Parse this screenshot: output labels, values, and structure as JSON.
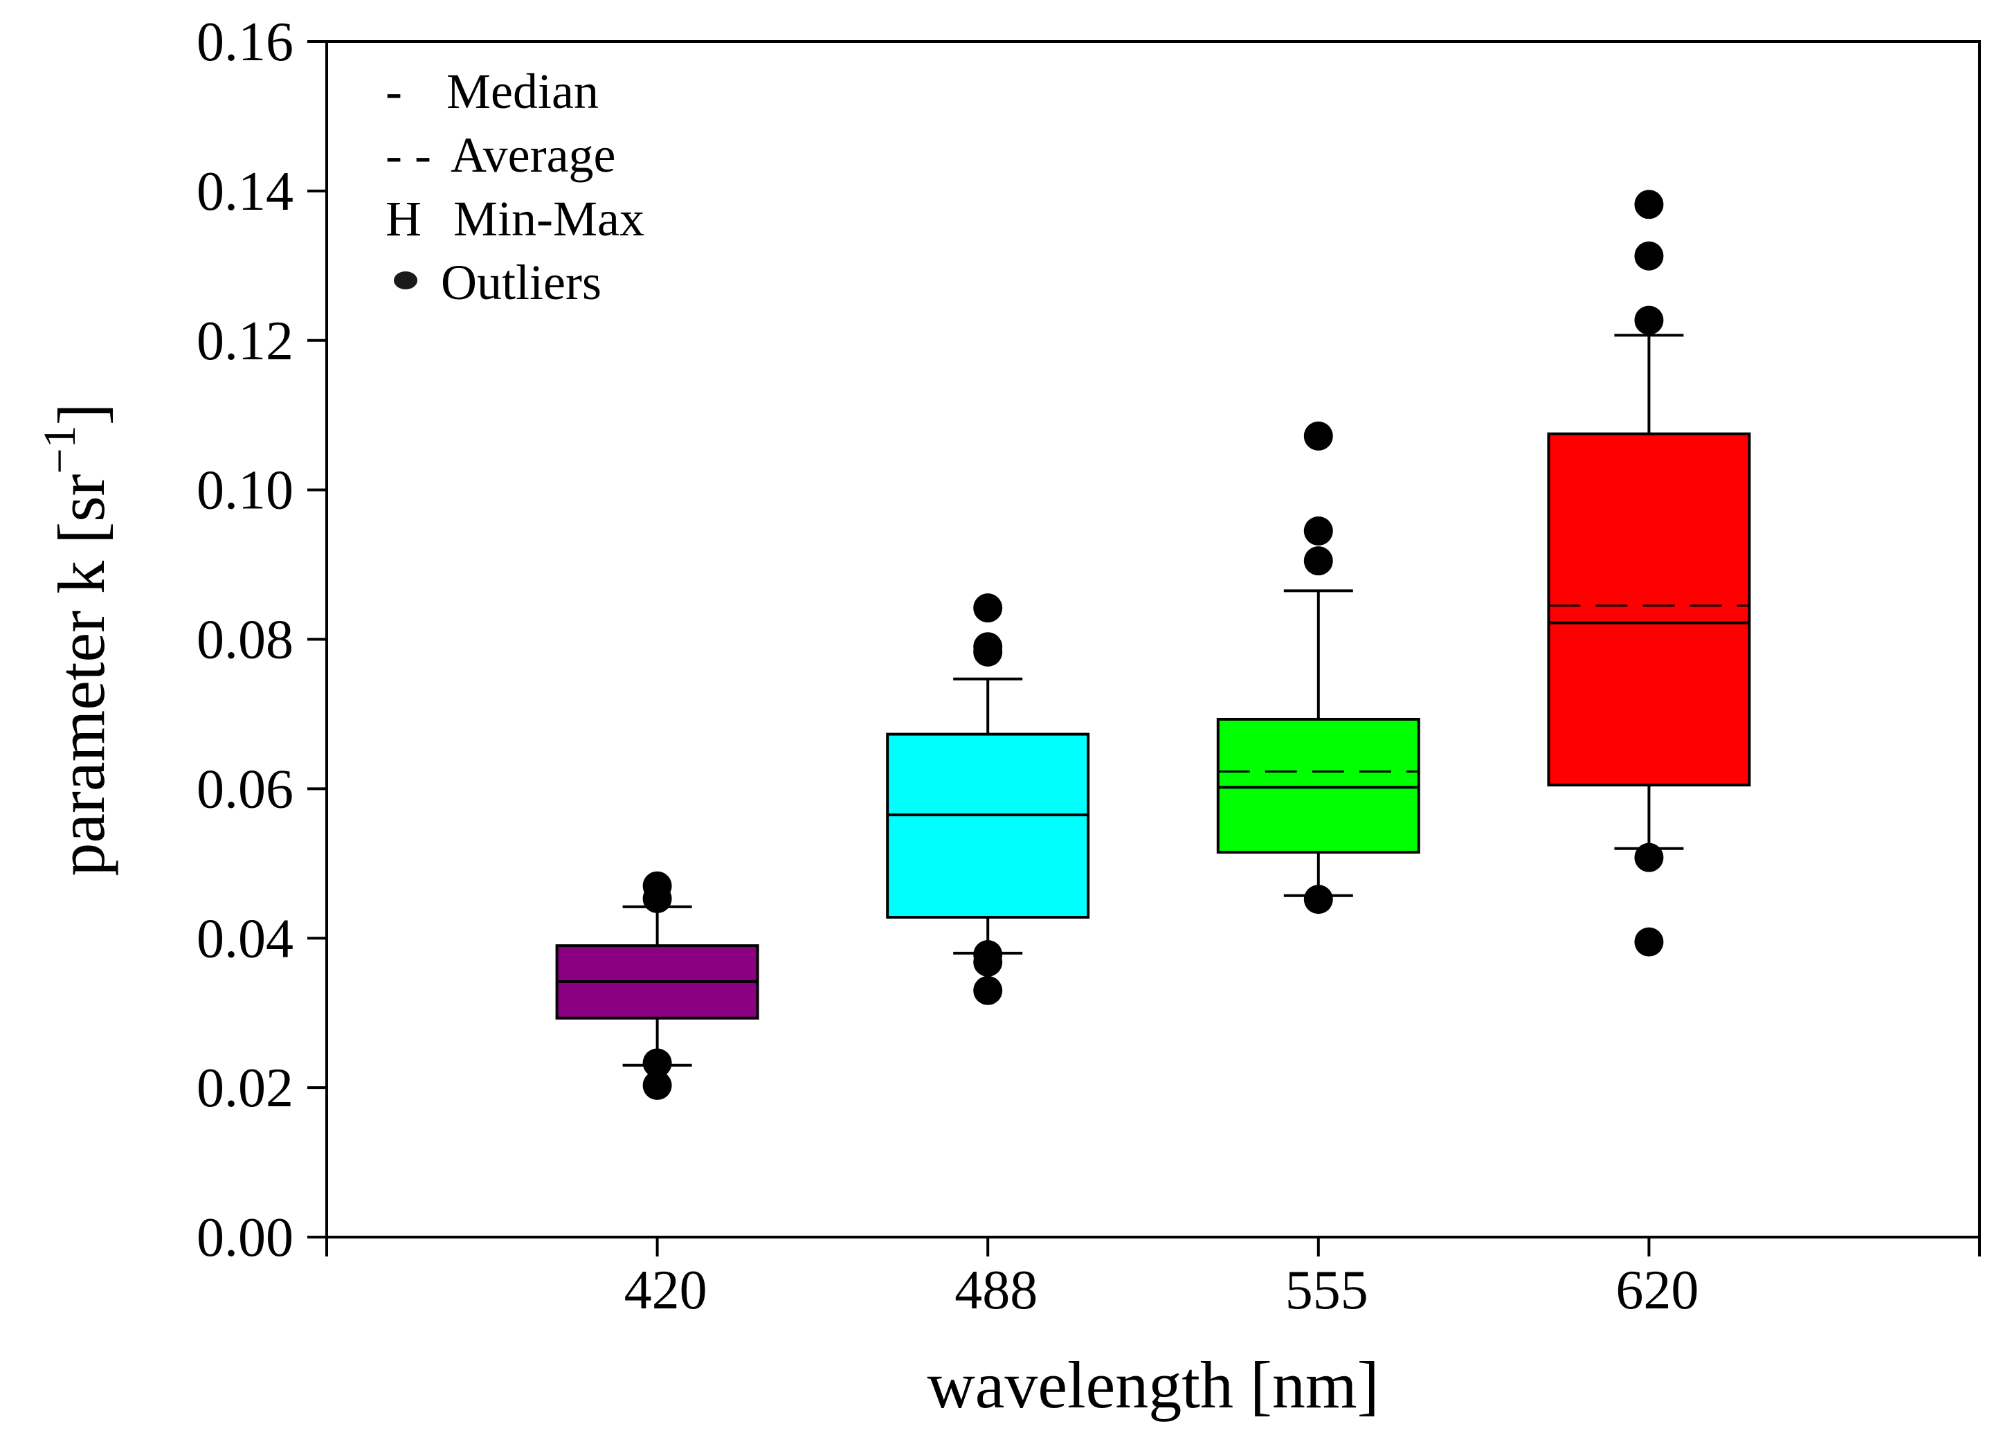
{
  "chart_data": {
    "type": "box",
    "title": "",
    "xlabel": "wavelength [nm]",
    "ylabel": {
      "text": "parameter k [sr",
      "superscript": "−1",
      "suffix": "]"
    },
    "ylim": [
      0,
      0.16
    ],
    "yticks": [
      0.0,
      0.02,
      0.04,
      0.06,
      0.08,
      0.1,
      0.12,
      0.14,
      0.16
    ],
    "ytick_labels": [
      "0.00",
      "0.02",
      "0.04",
      "0.06",
      "0.08",
      "0.10",
      "0.12",
      "0.14",
      "0.16"
    ],
    "xlim": [
      0,
      5
    ],
    "categories": [
      "420",
      "488",
      "555",
      "620"
    ],
    "grid": false,
    "legend_position": "top-left",
    "legend": [
      {
        "symbol": "-",
        "label": "Median"
      },
      {
        "symbol": "- -",
        "label": "Average"
      },
      {
        "symbol": "H",
        "label": "Min-Max"
      },
      {
        "symbol": "●",
        "label": "Outliers"
      }
    ],
    "series": [
      {
        "name": "420",
        "color": "#8b0080",
        "q1": 0.0293,
        "q3": 0.039,
        "median": 0.0342,
        "mean": 0.0342,
        "whisker_low": 0.023,
        "whisker_high": 0.0442,
        "outliers": [
          0.047,
          0.0453,
          0.0233,
          0.0203
        ]
      },
      {
        "name": "488",
        "color": "#00ffff",
        "q1": 0.0428,
        "q3": 0.0673,
        "median": 0.0565,
        "mean": 0.0565,
        "whisker_low": 0.038,
        "whisker_high": 0.0747,
        "outliers": [
          0.0842,
          0.079,
          0.0783,
          0.0378,
          0.0368,
          0.033
        ]
      },
      {
        "name": "555",
        "color": "#00ff00",
        "q1": 0.0515,
        "q3": 0.0693,
        "median": 0.0602,
        "mean": 0.0623,
        "whisker_low": 0.0457,
        "whisker_high": 0.0865,
        "outliers": [
          0.1072,
          0.0945,
          0.0905,
          0.0452
        ]
      },
      {
        "name": "620",
        "color": "#ff0000",
        "q1": 0.0605,
        "q3": 0.1075,
        "median": 0.0822,
        "mean": 0.0845,
        "whisker_low": 0.052,
        "whisker_high": 0.1207,
        "outliers": [
          0.1382,
          0.1313,
          0.1227,
          0.0508,
          0.0395
        ]
      }
    ]
  }
}
